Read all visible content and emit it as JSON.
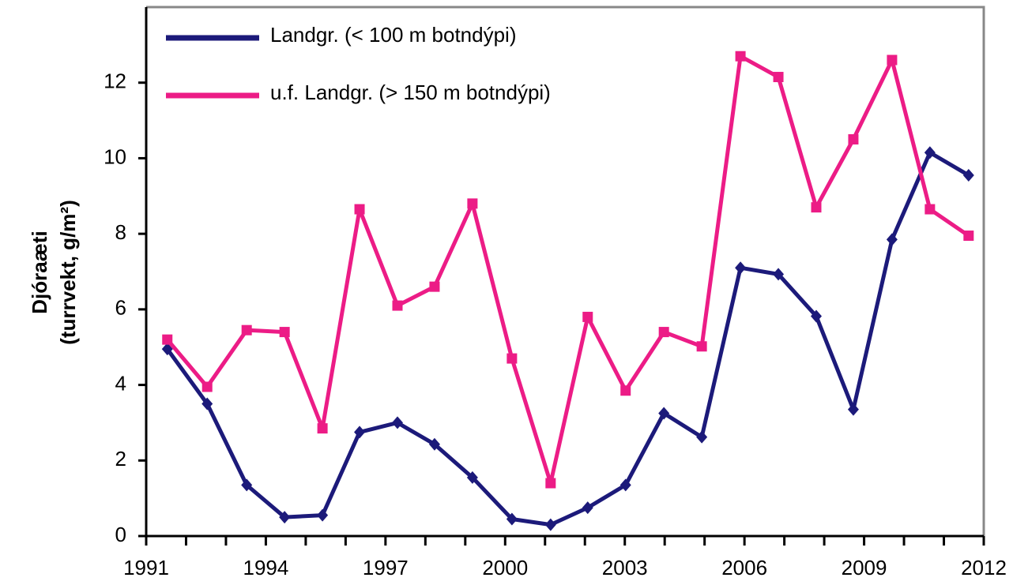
{
  "chart_data": {
    "type": "line",
    "ylabel": [
      "Djóraæti",
      "(turrvekt, g/m²)"
    ],
    "x": [
      1991.53,
      1992.53,
      1993.52,
      1994.47,
      1995.42,
      1996.35,
      1997.3,
      1998.23,
      1999.18,
      2000.17,
      2001.14,
      2002.07,
      2003.02,
      2003.98,
      2004.93,
      2005.9,
      2006.85,
      2007.8,
      2008.73,
      2009.7,
      2010.65,
      2011.62
    ],
    "series": [
      {
        "name": "Landgr. (< 100 m botndýpi)",
        "color": "#1c1a7a",
        "marker": "diamond",
        "values": [
          4.95,
          3.5,
          1.35,
          0.5,
          0.55,
          2.75,
          3.0,
          2.43,
          1.55,
          0.45,
          0.3,
          0.75,
          1.35,
          3.25,
          2.62,
          7.1,
          6.93,
          5.82,
          3.35,
          7.85,
          10.15,
          9.55
        ]
      },
      {
        "name": "u.f. Landgr. (> 150 m botndýpi)",
        "color": "#ec1c86",
        "marker": "square",
        "values": [
          5.2,
          3.95,
          5.45,
          5.4,
          2.85,
          8.65,
          6.1,
          6.6,
          8.8,
          4.7,
          1.4,
          5.8,
          3.85,
          5.4,
          5.02,
          12.7,
          12.15,
          8.7,
          10.5,
          12.6,
          8.65,
          7.95
        ]
      }
    ],
    "xlim": [
      1991,
      2012
    ],
    "xticks": [
      1991,
      1994,
      1997,
      2000,
      2003,
      2006,
      2009,
      2012
    ],
    "xminorticks": [
      1992,
      1993,
      1995,
      1996,
      1998,
      1999,
      2001,
      2002,
      2004,
      2005,
      2007,
      2008,
      2010,
      2011
    ],
    "ylim": [
      0,
      14
    ],
    "yticks": [
      0,
      2,
      4,
      6,
      8,
      10,
      12
    ],
    "legend": "upper left",
    "grid": false
  }
}
